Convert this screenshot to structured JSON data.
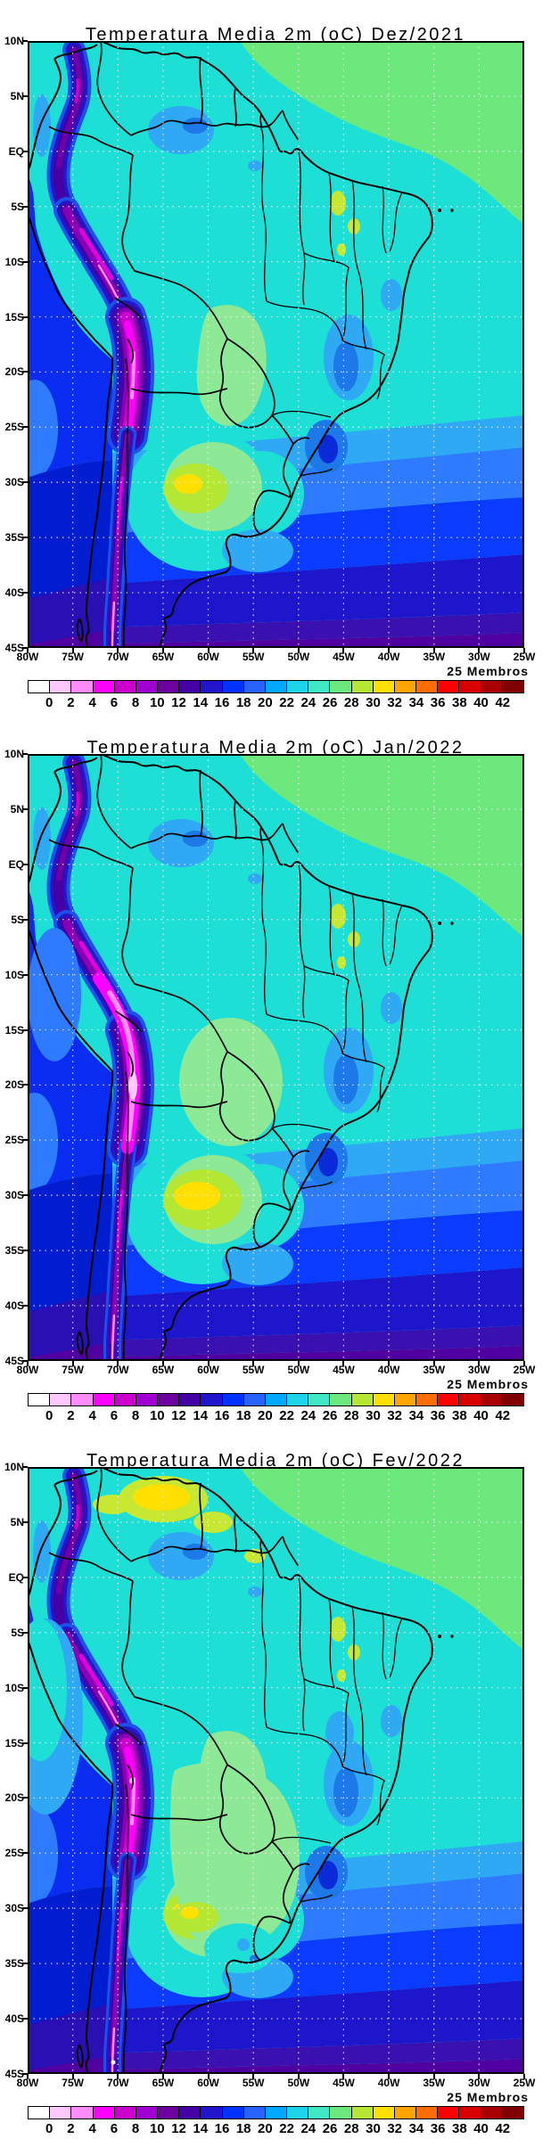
{
  "panels": [
    {
      "id": "dez",
      "title": "Temperatura Media 2m (oC) Dez/2021",
      "members_label": "25 Membros"
    },
    {
      "id": "jan",
      "title": "Temperatura Media 2m (oC) Jan/2022",
      "members_label": "25 Membros"
    },
    {
      "id": "fev",
      "title": "Temperatura Media 2m (oC) Fev/2022",
      "members_label": "25 Membros"
    }
  ],
  "axes": {
    "lat_ticks": [
      "10N",
      "5N",
      "EQ",
      "5S",
      "10S",
      "15S",
      "20S",
      "25S",
      "30S",
      "35S",
      "40S",
      "45S"
    ],
    "lon_ticks": [
      "80W",
      "75W",
      "70W",
      "65W",
      "60W",
      "55W",
      "50W",
      "45W",
      "40W",
      "35W",
      "30W",
      "25W"
    ]
  },
  "colorbar": {
    "tick_labels": [
      "0",
      "2",
      "4",
      "6",
      "8",
      "10",
      "12",
      "14",
      "16",
      "18",
      "20",
      "22",
      "24",
      "26",
      "28",
      "30",
      "32",
      "34",
      "36",
      "38",
      "40",
      "42"
    ],
    "palette": [
      "#FFFFFF",
      "#FFC8FF",
      "#FF8CFF",
      "#FF00FF",
      "#CC00CC",
      "#A000D2",
      "#6E00A0",
      "#4400A4",
      "#2214CC",
      "#0032FF",
      "#2863FF",
      "#00A8FF",
      "#1CD4E8",
      "#40E8C4",
      "#6CE87C",
      "#B4E834",
      "#FFE000",
      "#FFA400",
      "#FF6C00",
      "#FF0000",
      "#D80000",
      "#A80000",
      "#800000"
    ],
    "units": "oC"
  },
  "colors": {
    "background": "#FFFFFF",
    "map_base_cyan": "#1EDFD6",
    "ne_atlantic_green": "#6CE87C",
    "pale_green_land": "#8DE996",
    "yellow_green": "#B4E834",
    "warm_yellow": "#FFE000",
    "andes_magenta": "#FF00FF",
    "andes_pink": "#FF8CFF",
    "pacific_blue": "#0A2CF0",
    "south_band_indigo": "#2A10B4",
    "south_band_purple": "#5000A0",
    "grid_dots": "#FFE8F2",
    "frame": "#000000"
  },
  "chart_data": [
    {
      "type": "heatmap",
      "title": "Temperatura Media 2m (oC) Dez/2021",
      "x_axis": {
        "label": "longitude",
        "ticks": [
          "80W",
          "75W",
          "70W",
          "65W",
          "60W",
          "55W",
          "50W",
          "45W",
          "40W",
          "35W",
          "30W",
          "25W"
        ]
      },
      "y_axis": {
        "label": "latitude",
        "ticks": [
          "10N",
          "5N",
          "EQ",
          "5S",
          "10S",
          "15S",
          "20S",
          "25S",
          "30S",
          "35S",
          "40S",
          "45S"
        ]
      },
      "colorbar_levels_C": [
        0,
        2,
        4,
        6,
        8,
        10,
        12,
        14,
        16,
        18,
        20,
        22,
        24,
        26,
        28,
        30,
        32,
        34,
        36,
        38,
        40,
        42
      ],
      "legend": "25 Membros",
      "grid": "5-degree dotted graticule",
      "region_values_C": {
        "amazon_basin": "22-24",
        "ne_brazil_and_tropical_atlantic": "26-28",
        "andes_cordillera_core": "0-6",
        "altiplano": "6-12",
        "pacific_off_peru_chile": "14-18",
        "argentina_pampas_warm_core": "28-32",
        "paraguay_chaco": "24-28",
        "se_brazil_highlands": "18-22",
        "patagonia": "10-16",
        "south_atlantic_45S": "6-12"
      }
    },
    {
      "type": "heatmap",
      "title": "Temperatura Media 2m (oC) Jan/2022",
      "x_axis": {
        "label": "longitude",
        "ticks": [
          "80W",
          "75W",
          "70W",
          "65W",
          "60W",
          "55W",
          "50W",
          "45W",
          "40W",
          "35W",
          "30W",
          "25W"
        ]
      },
      "y_axis": {
        "label": "latitude",
        "ticks": [
          "10N",
          "5N",
          "EQ",
          "5S",
          "10S",
          "15S",
          "20S",
          "25S",
          "30S",
          "35S",
          "40S",
          "45S"
        ]
      },
      "colorbar_levels_C": [
        0,
        2,
        4,
        6,
        8,
        10,
        12,
        14,
        16,
        18,
        20,
        22,
        24,
        26,
        28,
        30,
        32,
        34,
        36,
        38,
        40,
        42
      ],
      "legend": "25 Membros",
      "grid": "5-degree dotted graticule",
      "region_values_C": {
        "amazon_basin": "22-24",
        "ne_brazil_and_tropical_atlantic": "26-28",
        "andes_cordillera_core": "0-4",
        "altiplano": "4-10",
        "pacific_off_peru_chile": "16-20",
        "argentina_pampas_warm_core": "30-34",
        "paraguay_chaco": "26-28",
        "se_brazil_highlands": "18-22",
        "patagonia": "10-16",
        "south_atlantic_45S": "6-12"
      }
    },
    {
      "type": "heatmap",
      "title": "Temperatura Media 2m (oC) Fev/2022",
      "x_axis": {
        "label": "longitude",
        "ticks": [
          "80W",
          "75W",
          "70W",
          "65W",
          "60W",
          "55W",
          "50W",
          "45W",
          "40W",
          "35W",
          "30W",
          "25W"
        ]
      },
      "y_axis": {
        "label": "latitude",
        "ticks": [
          "10N",
          "5N",
          "EQ",
          "5S",
          "10S",
          "15S",
          "20S",
          "25S",
          "30S",
          "35S",
          "40S",
          "45S"
        ]
      },
      "colorbar_levels_C": [
        0,
        2,
        4,
        6,
        8,
        10,
        12,
        14,
        16,
        18,
        20,
        22,
        24,
        26,
        28,
        30,
        32,
        34,
        36,
        38,
        40,
        42
      ],
      "legend": "25 Membros",
      "grid": "5-degree dotted graticule",
      "region_values_C": {
        "venezuela_llanos_warm_patch": "30-32",
        "amazon_basin": "22-24",
        "ne_brazil_and_tropical_atlantic": "26-28",
        "andes_cordillera_core": "0-4",
        "altiplano": "4-10",
        "pacific_off_peru_chile": "18-22",
        "argentina_pampas_warm_core": "28-32",
        "paraguay_n_argentina_green_band": "26-28",
        "patagonia": "10-16",
        "south_atlantic_45S": "6-12"
      }
    }
  ]
}
